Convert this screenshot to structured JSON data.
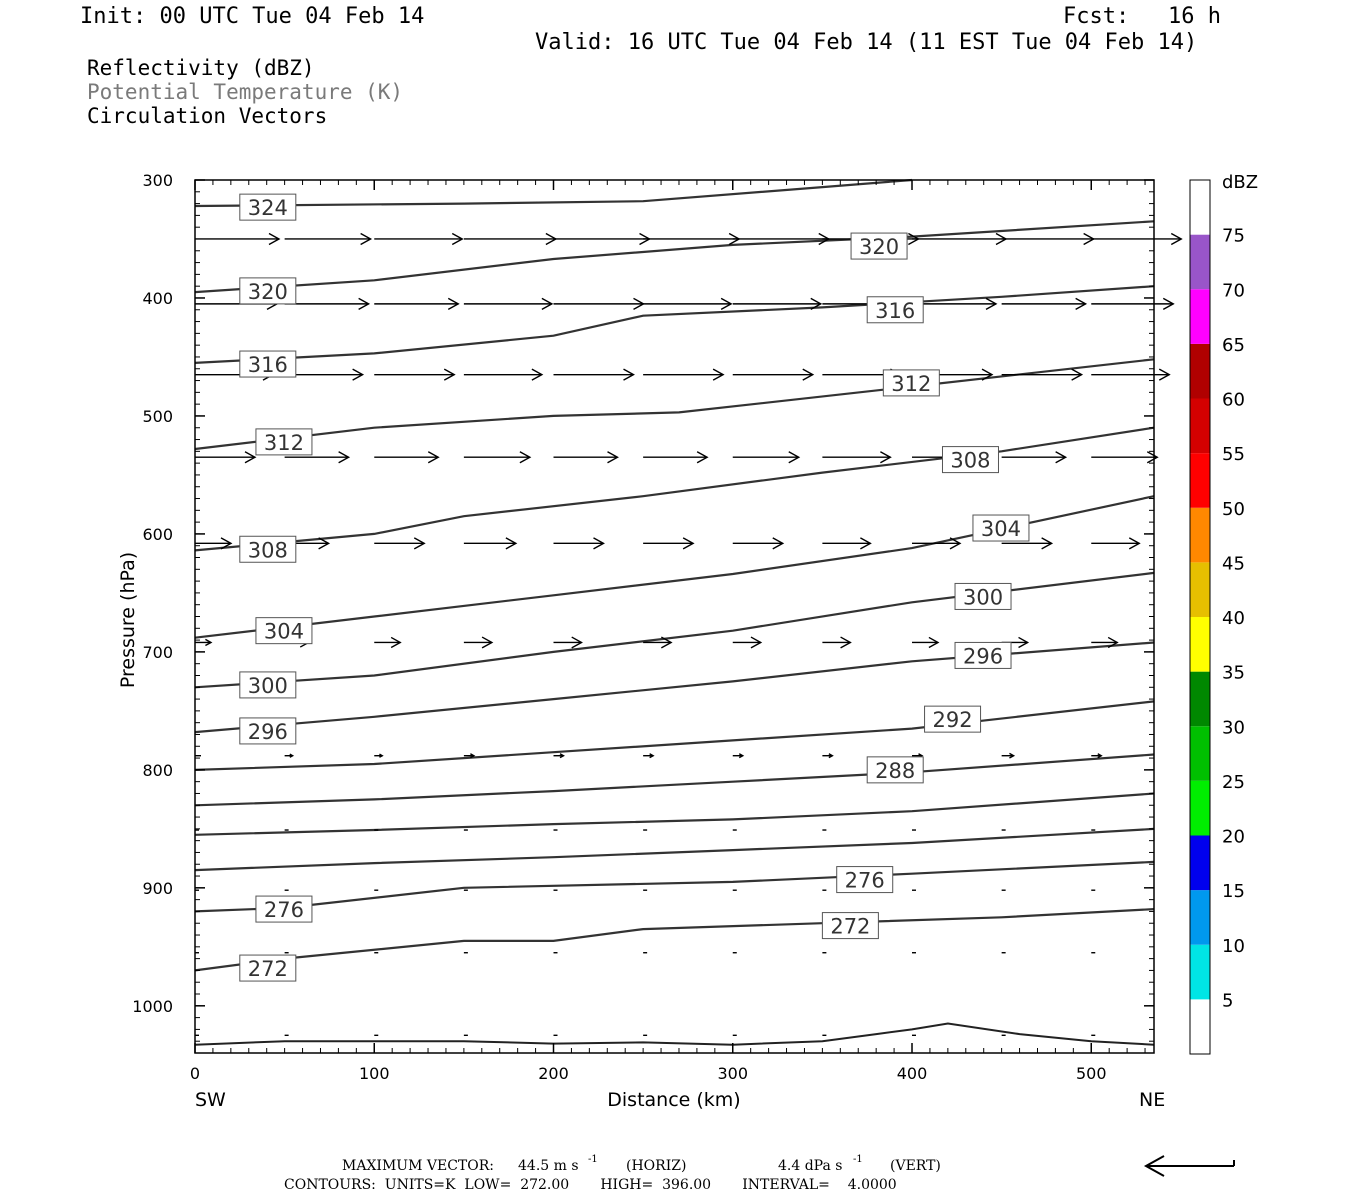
{
  "header": {
    "init": "Init: 00 UTC Tue 04 Feb 14",
    "fcst_label": "Fcst:",
    "fcst_value": "16 h",
    "valid": "Valid: 16 UTC Tue 04 Feb 14 (11 EST Tue 04 Feb 14)"
  },
  "legend_lines": {
    "line1": "Reflectivity (dBZ)",
    "line2": "Potential Temperature (K)",
    "line3": "Circulation Vectors"
  },
  "footer": {
    "maxvec_label": "MAXIMUM VECTOR:",
    "maxvec_horiz": "44.5 m s",
    "horiz_tag": "(HORIZ)",
    "maxvec_vert": "4.4 dPa s",
    "vert_tag": "(VERT)",
    "exponent": "-1",
    "contours": "CONTOURS:  UNITS=K  LOW=  272.00       HIGH=  396.00       INTERVAL=    4.0000"
  },
  "colorbar": {
    "title": "dBZ",
    "ticks": [
      "5",
      "10",
      "15",
      "20",
      "25",
      "30",
      "35",
      "40",
      "45",
      "50",
      "55",
      "60",
      "65",
      "70",
      "75"
    ],
    "colors": [
      "#ffffff",
      "#00e5e5",
      "#0099ee",
      "#0000ee",
      "#00ee00",
      "#00c000",
      "#008800",
      "#ffff00",
      "#e6bf00",
      "#ff8800",
      "#ff0000",
      "#d40000",
      "#b00000",
      "#ff00ff",
      "#9955c9",
      "#ffffff"
    ]
  },
  "chart_data": {
    "type": "contour",
    "xlabel": "Distance (km)",
    "ylabel": "Pressure (hPa)",
    "x_ticks": [
      "0",
      "100",
      "200",
      "300",
      "400",
      "500"
    ],
    "y_ticks": [
      "300",
      "400",
      "500",
      "600",
      "700",
      "800",
      "900",
      "1000"
    ],
    "xlim": [
      0,
      535
    ],
    "ylim": [
      300,
      1040
    ],
    "left_end": "SW",
    "right_end": "NE",
    "contour_interval": 4,
    "contours": [
      {
        "value": 324,
        "x": [
          0,
          150,
          250,
          350,
          400
        ],
        "y": [
          322,
          320,
          318,
          306,
          300
        ],
        "labels": [
          {
            "x": 25,
            "y": 323
          }
        ]
      },
      {
        "value": 320,
        "x": [
          0,
          100,
          200,
          300,
          400,
          535
        ],
        "y": [
          395,
          385,
          367,
          355,
          348,
          335
        ],
        "labels": [
          {
            "x": 25,
            "y": 394
          },
          {
            "x": 366,
            "y": 356
          }
        ]
      },
      {
        "value": 316,
        "x": [
          0,
          100,
          200,
          250,
          350,
          450,
          535
        ],
        "y": [
          455,
          447,
          432,
          415,
          408,
          399,
          390
        ],
        "labels": [
          {
            "x": 25,
            "y": 456
          },
          {
            "x": 375,
            "y": 410
          }
        ]
      },
      {
        "value": 312,
        "x": [
          0,
          100,
          200,
          270,
          400,
          535
        ],
        "y": [
          528,
          510,
          500,
          497,
          475,
          452
        ],
        "labels": [
          {
            "x": 34,
            "y": 522
          },
          {
            "x": 384,
            "y": 472
          }
        ]
      },
      {
        "value": 308,
        "x": [
          0,
          100,
          150,
          250,
          350,
          450,
          535
        ],
        "y": [
          614,
          600,
          585,
          568,
          548,
          530,
          510
        ],
        "labels": [
          {
            "x": 25,
            "y": 613
          },
          {
            "x": 417,
            "y": 537
          }
        ]
      },
      {
        "value": 304,
        "x": [
          0,
          100,
          200,
          300,
          400,
          535
        ],
        "y": [
          688,
          670,
          652,
          634,
          612,
          568
        ],
        "labels": [
          {
            "x": 34,
            "y": 682
          },
          {
            "x": 434,
            "y": 595
          }
        ]
      },
      {
        "value": 300,
        "x": [
          0,
          100,
          200,
          300,
          400,
          535
        ],
        "y": [
          730,
          720,
          700,
          682,
          658,
          633
        ],
        "labels": [
          {
            "x": 25,
            "y": 728
          },
          {
            "x": 424,
            "y": 653
          }
        ]
      },
      {
        "value": 296,
        "x": [
          0,
          100,
          200,
          300,
          400,
          535
        ],
        "y": [
          768,
          755,
          740,
          725,
          708,
          692
        ],
        "labels": [
          {
            "x": 25,
            "y": 767
          },
          {
            "x": 424,
            "y": 703
          }
        ]
      },
      {
        "value": 292,
        "x": [
          0,
          100,
          200,
          300,
          400,
          535
        ],
        "y": [
          800,
          795,
          785,
          775,
          765,
          742
        ],
        "labels": [
          {
            "x": 407,
            "y": 757
          }
        ]
      },
      {
        "value": 288,
        "x": [
          0,
          100,
          200,
          300,
          400,
          535
        ],
        "y": [
          830,
          825,
          818,
          810,
          802,
          787
        ],
        "labels": [
          {
            "x": 375,
            "y": 800
          }
        ]
      },
      {
        "value": 284,
        "x": [
          0,
          100,
          200,
          300,
          400,
          535
        ],
        "y": [
          855,
          851,
          846,
          842,
          835,
          820
        ],
        "labels": []
      },
      {
        "value": 280,
        "x": [
          0,
          100,
          200,
          300,
          400,
          535
        ],
        "y": [
          885,
          879,
          874,
          868,
          862,
          850
        ],
        "labels": []
      },
      {
        "value": 276,
        "x": [
          0,
          50,
          150,
          300,
          400,
          535
        ],
        "y": [
          920,
          917,
          900,
          895,
          888,
          878
        ],
        "labels": [
          {
            "x": 34,
            "y": 918
          },
          {
            "x": 358,
            "y": 893
          }
        ]
      },
      {
        "value": 272,
        "x": [
          0,
          50,
          150,
          200,
          250,
          350,
          450,
          535
        ],
        "y": [
          970,
          960,
          945,
          945,
          935,
          930,
          925,
          918
        ],
        "labels": [
          {
            "x": 25,
            "y": 968
          },
          {
            "x": 350,
            "y": 932
          }
        ]
      }
    ],
    "surface": {
      "x": [
        0,
        50,
        100,
        150,
        200,
        250,
        300,
        350,
        380,
        400,
        420,
        460,
        500,
        535
      ],
      "y": [
        1033,
        1030,
        1030,
        1030,
        1032,
        1031,
        1033,
        1030,
        1024,
        1020,
        1015,
        1024,
        1030,
        1033
      ]
    },
    "vectors": {
      "x_km": [
        0,
        50,
        100,
        150,
        200,
        250,
        300,
        350,
        400,
        450,
        500
      ],
      "levels": [
        {
          "p": 350,
          "u": [
            42,
            43,
            44,
            46,
            48,
            48,
            48,
            48,
            47,
            46,
            45
          ]
        },
        {
          "p": 405,
          "u": [
            41,
            42,
            42,
            44,
            45,
            44,
            44,
            43,
            42,
            42,
            41
          ]
        },
        {
          "p": 465,
          "u": [
            39,
            39,
            40,
            39,
            40,
            40,
            40,
            39,
            40,
            40,
            39
          ]
        },
        {
          "p": 535,
          "u": [
            30,
            32,
            32,
            33,
            32,
            32,
            33,
            34,
            33,
            32,
            33
          ]
        },
        {
          "p": 608,
          "u": [
            18,
            22,
            25,
            26,
            25,
            25,
            25,
            24,
            24,
            25,
            24
          ]
        },
        {
          "p": 692,
          "u": [
            8,
            12,
            13,
            14,
            14,
            14,
            14,
            14,
            13,
            13,
            13
          ]
        },
        {
          "p": 788,
          "u": [
            3,
            4,
            4,
            5,
            5,
            5,
            5,
            5,
            5,
            6,
            5
          ]
        },
        {
          "p": 851,
          "u": [
            2,
            2,
            2,
            2,
            2,
            2,
            2,
            2,
            2,
            2,
            1
          ]
        },
        {
          "p": 902,
          "u": [
            1,
            1,
            1,
            1,
            1,
            1,
            1,
            1,
            1,
            1,
            1
          ]
        },
        {
          "p": 955,
          "u": [
            1,
            1,
            1,
            1,
            1,
            1,
            1,
            1,
            1,
            1,
            1
          ]
        },
        {
          "p": 1025,
          "u": [
            2,
            2,
            2,
            2,
            2,
            2,
            2,
            2,
            2,
            1,
            1
          ]
        }
      ]
    }
  }
}
